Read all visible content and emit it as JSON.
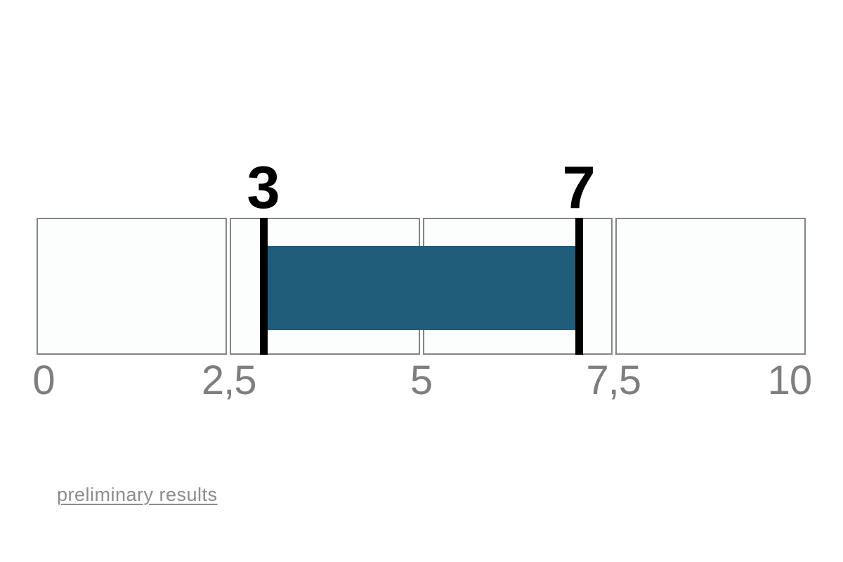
{
  "page": {
    "background": "#ffffff"
  },
  "chart_data": {
    "type": "bar",
    "subtype": "horizontal-range-indicator",
    "title": "",
    "x_axis": {
      "min": 0,
      "max": 10,
      "tick_values": [
        0,
        2.5,
        5,
        7.5,
        10
      ],
      "tick_labels": [
        "0",
        "2,5",
        "5",
        "7,5",
        "10"
      ],
      "grid": false,
      "legend": "none"
    },
    "segments": [
      {
        "from": 0,
        "to": 2.5
      },
      {
        "from": 2.5,
        "to": 5
      },
      {
        "from": 5,
        "to": 7.5
      },
      {
        "from": 7.5,
        "to": 10
      }
    ],
    "range": {
      "start": 3,
      "end": 7,
      "start_label": "3",
      "end_label": "7"
    },
    "colors": {
      "bar": "#205d7b",
      "segment_fill": "#fbfefd",
      "segment_border": "#858585",
      "tick_marker": "#000000",
      "value_label": "#000000",
      "axis_label": "#7e7e7e"
    }
  },
  "footer": {
    "link_label": "preliminary results",
    "link_color": "#8c8c8c"
  }
}
